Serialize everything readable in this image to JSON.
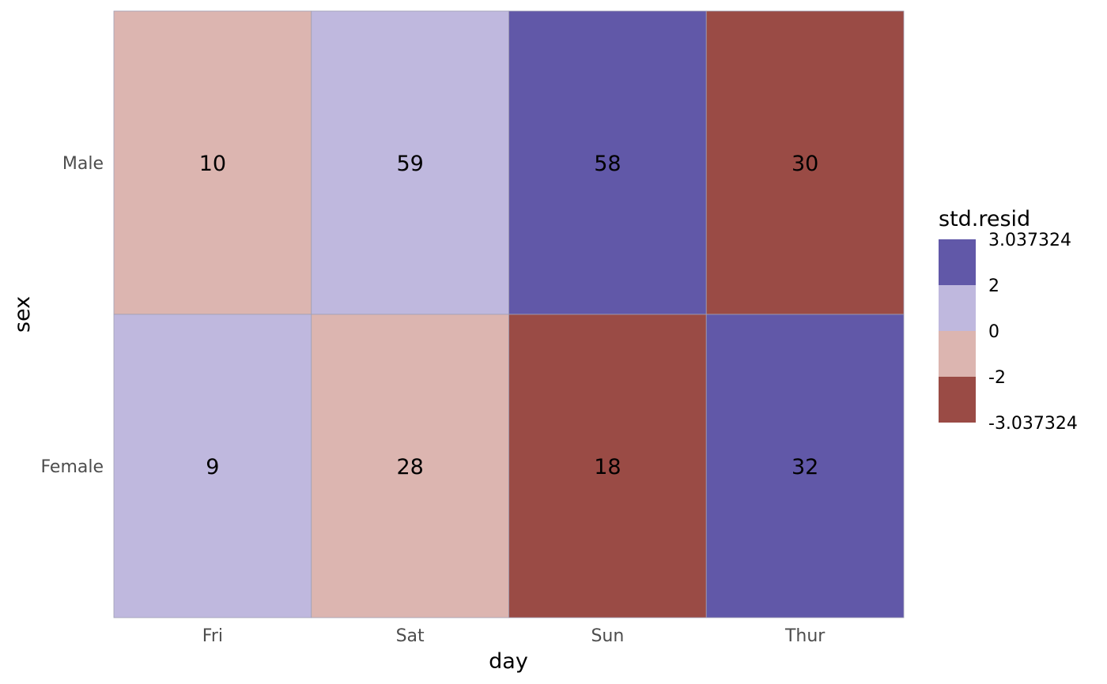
{
  "chart_data": {
    "type": "heatmap",
    "xlabel": "day",
    "ylabel": "sex",
    "x_categories": [
      "Fri",
      "Sat",
      "Sun",
      "Thur"
    ],
    "y_categories": [
      "Male",
      "Female"
    ],
    "counts": [
      [
        10,
        59,
        58,
        30
      ],
      [
        9,
        28,
        18,
        32
      ]
    ],
    "fill_bins": [
      [
        "-2 to 0",
        "0 to 2",
        "2 to 3.037324",
        "-3.037324 to -2"
      ],
      [
        "0 to 2",
        "-2 to 0",
        "-3.037324 to -2",
        "2 to 3.037324"
      ]
    ],
    "legend": {
      "title": "std.resid",
      "breaks": [
        "3.037324",
        "2",
        "0",
        "-2",
        "-3.037324"
      ],
      "bins": [
        {
          "range": "2 to 3.037324",
          "color": "#6158a8"
        },
        {
          "range": "0 to 2",
          "color": "#bfb8de"
        },
        {
          "range": "-2 to 0",
          "color": "#dcb5b0"
        },
        {
          "range": "-3.037324 to -2",
          "color": "#9a4b45"
        }
      ],
      "placement": "right"
    },
    "grid": false,
    "colors": {
      "tick_text": "#4d4d4d",
      "cell_border": "#a0a0b4"
    }
  }
}
